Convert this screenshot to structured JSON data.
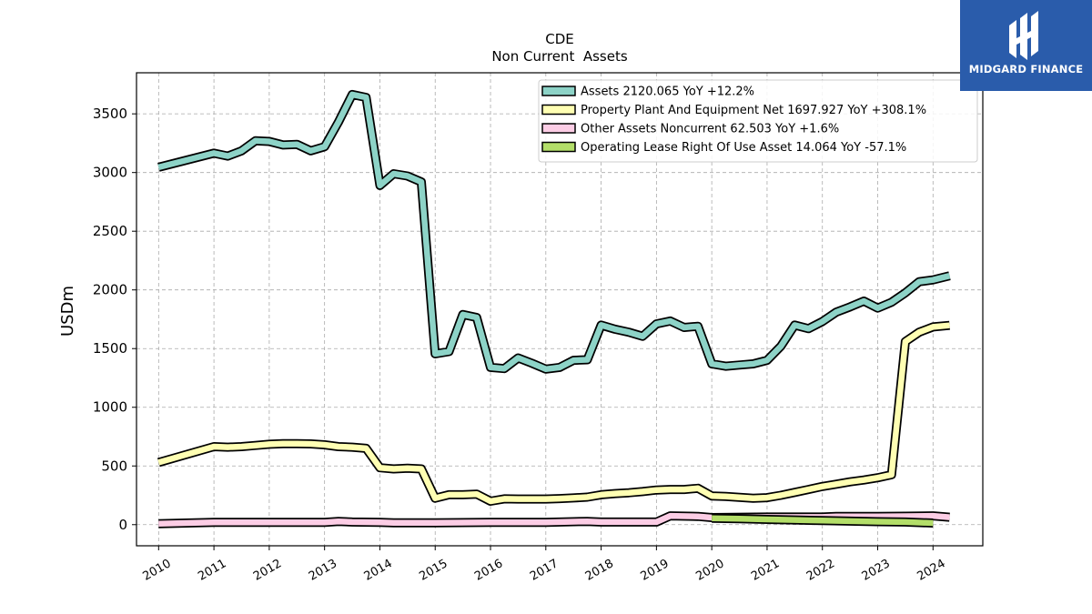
{
  "brand": {
    "name": "MIDGARD FINANCE",
    "logo_icon": "midgard-finance-logo-icon",
    "color": "#2a5cab"
  },
  "chart_data": {
    "type": "line",
    "title": "CDE",
    "subtitle": "Non Current  Assets",
    "xlabel": "",
    "ylabel": "USDm",
    "xlim": [
      2009.6,
      2024.9
    ],
    "ylim": [
      -180,
      3850
    ],
    "x_ticks": [
      "2010",
      "2011",
      "2012",
      "2013",
      "2014",
      "2015",
      "2016",
      "2017",
      "2018",
      "2019",
      "2020",
      "2021",
      "2022",
      "2023",
      "2024"
    ],
    "y_ticks": [
      "0",
      "500",
      "1000",
      "1500",
      "2000",
      "2500",
      "3000",
      "3500"
    ],
    "grid": true,
    "legend_position": "top-right",
    "series": [
      {
        "name": "Assets  2120.065 YoY +12.2%",
        "color": "#8dd3c7",
        "points": [
          [
            2010.0,
            3045
          ],
          [
            2011.0,
            3165
          ],
          [
            2011.25,
            3140
          ],
          [
            2011.5,
            3185
          ],
          [
            2011.75,
            3270
          ],
          [
            2012.0,
            3265
          ],
          [
            2012.25,
            3235
          ],
          [
            2012.5,
            3240
          ],
          [
            2012.75,
            3185
          ],
          [
            2013.0,
            3220
          ],
          [
            2013.25,
            3430
          ],
          [
            2013.5,
            3665
          ],
          [
            2013.75,
            3640
          ],
          [
            2014.0,
            2890
          ],
          [
            2014.25,
            2990
          ],
          [
            2014.5,
            2970
          ],
          [
            2014.75,
            2920
          ],
          [
            2015.0,
            1455
          ],
          [
            2015.25,
            1475
          ],
          [
            2015.5,
            1790
          ],
          [
            2015.75,
            1765
          ],
          [
            2016.0,
            1340
          ],
          [
            2016.25,
            1330
          ],
          [
            2016.5,
            1420
          ],
          [
            2016.75,
            1375
          ],
          [
            2017.0,
            1325
          ],
          [
            2017.25,
            1340
          ],
          [
            2017.5,
            1400
          ],
          [
            2017.75,
            1405
          ],
          [
            2018.0,
            1700
          ],
          [
            2018.25,
            1665
          ],
          [
            2018.5,
            1640
          ],
          [
            2018.75,
            1605
          ],
          [
            2019.0,
            1710
          ],
          [
            2019.25,
            1735
          ],
          [
            2019.5,
            1680
          ],
          [
            2019.75,
            1690
          ],
          [
            2020.0,
            1370
          ],
          [
            2020.25,
            1350
          ],
          [
            2020.5,
            1360
          ],
          [
            2020.75,
            1370
          ],
          [
            2021.0,
            1400
          ],
          [
            2021.25,
            1520
          ],
          [
            2021.5,
            1700
          ],
          [
            2021.75,
            1670
          ],
          [
            2022.0,
            1730
          ],
          [
            2022.25,
            1810
          ],
          [
            2022.5,
            1855
          ],
          [
            2022.75,
            1905
          ],
          [
            2023.0,
            1845
          ],
          [
            2023.25,
            1895
          ],
          [
            2023.5,
            1975
          ],
          [
            2023.75,
            2070
          ],
          [
            2024.0,
            2085
          ],
          [
            2024.3,
            2120
          ]
        ]
      },
      {
        "name": "Property Plant And Equipment Net  1697.927 YoY +308.1%",
        "color": "#ffffb3",
        "points": [
          [
            2010.0,
            530
          ],
          [
            2011.0,
            665
          ],
          [
            2011.25,
            660
          ],
          [
            2011.5,
            665
          ],
          [
            2011.75,
            675
          ],
          [
            2012.0,
            685
          ],
          [
            2012.25,
            690
          ],
          [
            2012.5,
            690
          ],
          [
            2012.75,
            688
          ],
          [
            2013.0,
            680
          ],
          [
            2013.25,
            665
          ],
          [
            2013.5,
            660
          ],
          [
            2013.75,
            650
          ],
          [
            2014.0,
            485
          ],
          [
            2014.25,
            475
          ],
          [
            2014.5,
            480
          ],
          [
            2014.75,
            475
          ],
          [
            2015.0,
            225
          ],
          [
            2015.25,
            255
          ],
          [
            2015.5,
            255
          ],
          [
            2015.75,
            260
          ],
          [
            2016.0,
            200
          ],
          [
            2016.25,
            220
          ],
          [
            2016.5,
            218
          ],
          [
            2016.75,
            218
          ],
          [
            2017.0,
            218
          ],
          [
            2017.25,
            222
          ],
          [
            2017.5,
            228
          ],
          [
            2017.75,
            235
          ],
          [
            2018.0,
            255
          ],
          [
            2018.25,
            265
          ],
          [
            2018.5,
            272
          ],
          [
            2018.75,
            282
          ],
          [
            2019.0,
            295
          ],
          [
            2019.25,
            300
          ],
          [
            2019.5,
            300
          ],
          [
            2019.75,
            310
          ],
          [
            2020.0,
            245
          ],
          [
            2020.25,
            240
          ],
          [
            2020.5,
            232
          ],
          [
            2020.75,
            225
          ],
          [
            2021.0,
            230
          ],
          [
            2021.25,
            250
          ],
          [
            2021.5,
            275
          ],
          [
            2021.75,
            300
          ],
          [
            2022.0,
            325
          ],
          [
            2022.25,
            345
          ],
          [
            2022.5,
            365
          ],
          [
            2022.75,
            380
          ],
          [
            2023.0,
            400
          ],
          [
            2023.25,
            425
          ],
          [
            2023.5,
            1560
          ],
          [
            2023.75,
            1640
          ],
          [
            2024.0,
            1685
          ],
          [
            2024.3,
            1698
          ]
        ]
      },
      {
        "name": "Other Assets Noncurrent  62.503 YoY +1.6%",
        "color": "#fccde5",
        "points": [
          [
            2010.0,
            8
          ],
          [
            2011.0,
            20
          ],
          [
            2012.0,
            20
          ],
          [
            2013.0,
            20
          ],
          [
            2013.25,
            28
          ],
          [
            2013.5,
            22
          ],
          [
            2014.0,
            20
          ],
          [
            2014.25,
            15
          ],
          [
            2015.0,
            15
          ],
          [
            2016.0,
            20
          ],
          [
            2017.0,
            20
          ],
          [
            2017.75,
            28
          ],
          [
            2018.0,
            22
          ],
          [
            2019.0,
            22
          ],
          [
            2019.25,
            75
          ],
          [
            2019.75,
            70
          ],
          [
            2020.0,
            60
          ],
          [
            2021.0,
            65
          ],
          [
            2022.0,
            65
          ],
          [
            2022.25,
            70
          ],
          [
            2023.0,
            70
          ],
          [
            2023.5,
            72
          ],
          [
            2024.0,
            75
          ],
          [
            2024.3,
            63
          ]
        ]
      },
      {
        "name": "Operating Lease Right Of Use Asset  14.064 YoY -57.1%",
        "color": "#b3de69",
        "points": [
          [
            2020.0,
            55
          ],
          [
            2020.5,
            50
          ],
          [
            2021.0,
            45
          ],
          [
            2021.5,
            40
          ],
          [
            2022.0,
            35
          ],
          [
            2022.5,
            30
          ],
          [
            2023.0,
            25
          ],
          [
            2023.5,
            22
          ],
          [
            2024.0,
            14
          ]
        ]
      }
    ]
  }
}
